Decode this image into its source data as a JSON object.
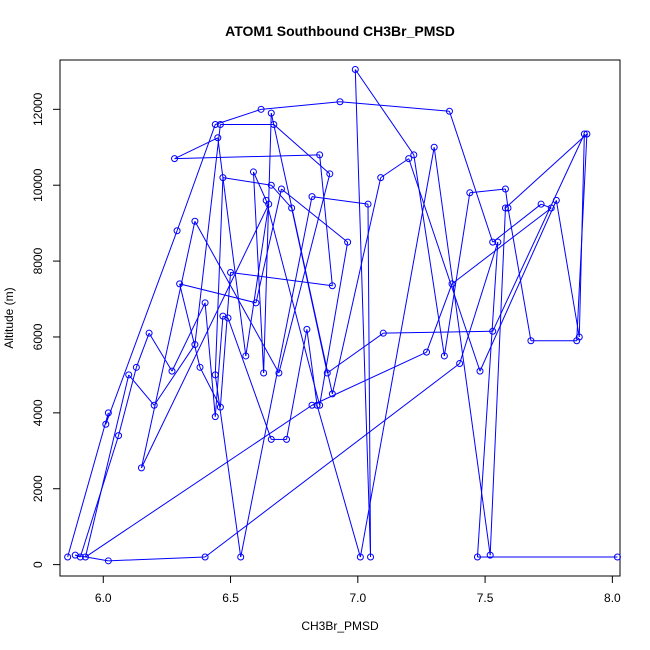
{
  "chart_data": {
    "type": "line",
    "title": "ATOM1 Southbound CH3Br_PMSD",
    "xlabel": "CH3Br_PMSD",
    "ylabel": "Altitude (m)",
    "xlim": [
      5.83,
      8.03
    ],
    "ylim": [
      -300,
      13300
    ],
    "xticks": [
      "6.0",
      "6.5",
      "7.0",
      "7.5",
      "8.0"
    ],
    "xtick_values": [
      6.0,
      6.5,
      7.0,
      7.5,
      8.0
    ],
    "yticks": [
      "0",
      "2000",
      "4000",
      "6000",
      "8000",
      "10000",
      "12000"
    ],
    "ytick_values": [
      0,
      2000,
      4000,
      6000,
      8000,
      10000,
      12000
    ],
    "grid": false,
    "series_color": "#0000FF",
    "series": [
      {
        "marker": "open-circle",
        "x": [
          5.86,
          6.02,
          6.01,
          6.29,
          6.44,
          6.62,
          6.93,
          7.36,
          7.53,
          7.72,
          7.76,
          7.37,
          7.27,
          6.82,
          5.93,
          6.1,
          6.2,
          6.36,
          6.46,
          6.67,
          6.89,
          6.69,
          6.36,
          6.15,
          6.65,
          6.56,
          6.45,
          6.28,
          6.85,
          6.9,
          6.5,
          6.46,
          6.38,
          6.3,
          6.6,
          6.7,
          6.96,
          6.85,
          6.64,
          6.59,
          6.63,
          6.66,
          6.9,
          7.09,
          7.2,
          7.48,
          7.78,
          7.87,
          7.89,
          7.53,
          7.1,
          6.88,
          6.74,
          6.66,
          6.47,
          6.44,
          6.54,
          6.82,
          7.04,
          7.05,
          6.99,
          7.22,
          7.34,
          7.44,
          7.58,
          7.59,
          7.68,
          7.86,
          7.9,
          7.58,
          7.52,
          7.3,
          7.01,
          6.84,
          6.8,
          6.72,
          6.66,
          6.49,
          6.47,
          6.44,
          6.4,
          6.27,
          6.18,
          6.13,
          6.06,
          5.91,
          5.89,
          6.02,
          6.4,
          7.4,
          7.55,
          7.47,
          8.02
        ],
        "y": [
          200,
          4000,
          3700,
          8800,
          11600,
          12000,
          12200,
          11950,
          8500,
          9500,
          9400,
          7400,
          5600,
          4200,
          200,
          5000,
          4200,
          5800,
          11600,
          11600,
          10300,
          5050,
          9050,
          2550,
          9500,
          5500,
          11250,
          10700,
          10800,
          7350,
          7700,
          4150,
          5200,
          7400,
          6900,
          9900,
          8500,
          4200,
          9600,
          10350,
          5050,
          11900,
          4500,
          10200,
          10700,
          5100,
          9600,
          6000,
          11350,
          6150,
          6100,
          5050,
          9400,
          10000,
          10200,
          5000,
          200,
          9700,
          9500,
          200,
          13050,
          10800,
          5500,
          9800,
          9900,
          9400,
          5900,
          5900,
          11350,
          9400,
          250,
          11000,
          200,
          4200,
          6200,
          3300,
          3300,
          6500,
          6550,
          3900,
          6900,
          5100,
          6100,
          5200,
          3400,
          200,
          250,
          100,
          200,
          5300,
          8500,
          200,
          200
        ]
      }
    ]
  }
}
